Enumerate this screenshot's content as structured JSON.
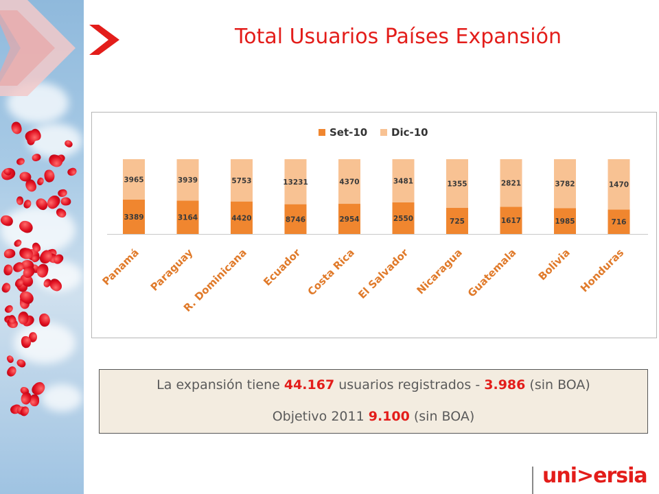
{
  "title": "Total Usuarios Países Expansión",
  "brand": "uni>ersia",
  "colors": {
    "accent": "#e31d1a",
    "set10": "#f0862f",
    "dic10": "#f8c293",
    "category_text": "#e07a2a",
    "summary_bg": "#f3ece0"
  },
  "chart_data": {
    "type": "bar",
    "stacked": true,
    "legend_position": "top",
    "categories": [
      "Panamá",
      "Paraguay",
      "R. Dominicana",
      "Ecuador",
      "Costa Rica",
      "El Salvador",
      "Nicaragua",
      "Guatemala",
      "Bolivia",
      "Honduras"
    ],
    "series": [
      {
        "name": "Set-10",
        "values": [
          3389,
          3164,
          4420,
          8746,
          2954,
          2550,
          725,
          1617,
          1985,
          716
        ]
      },
      {
        "name": "Dic-10",
        "values": [
          3965,
          3939,
          5753,
          13231,
          4370,
          3481,
          1355,
          2821,
          3782,
          1470
        ]
      }
    ],
    "normalized_100_percent": true
  },
  "summary": {
    "line1_pre": "La expansión tiene ",
    "line1_total": "44.167",
    "line1_mid": " usuarios registrados - ",
    "line1_boa": "3.986",
    "line1_post": " (sin BOA)",
    "line2_pre": "Objetivo 2011 ",
    "line2_goal": "9.100",
    "line2_post": " (sin BOA)"
  }
}
